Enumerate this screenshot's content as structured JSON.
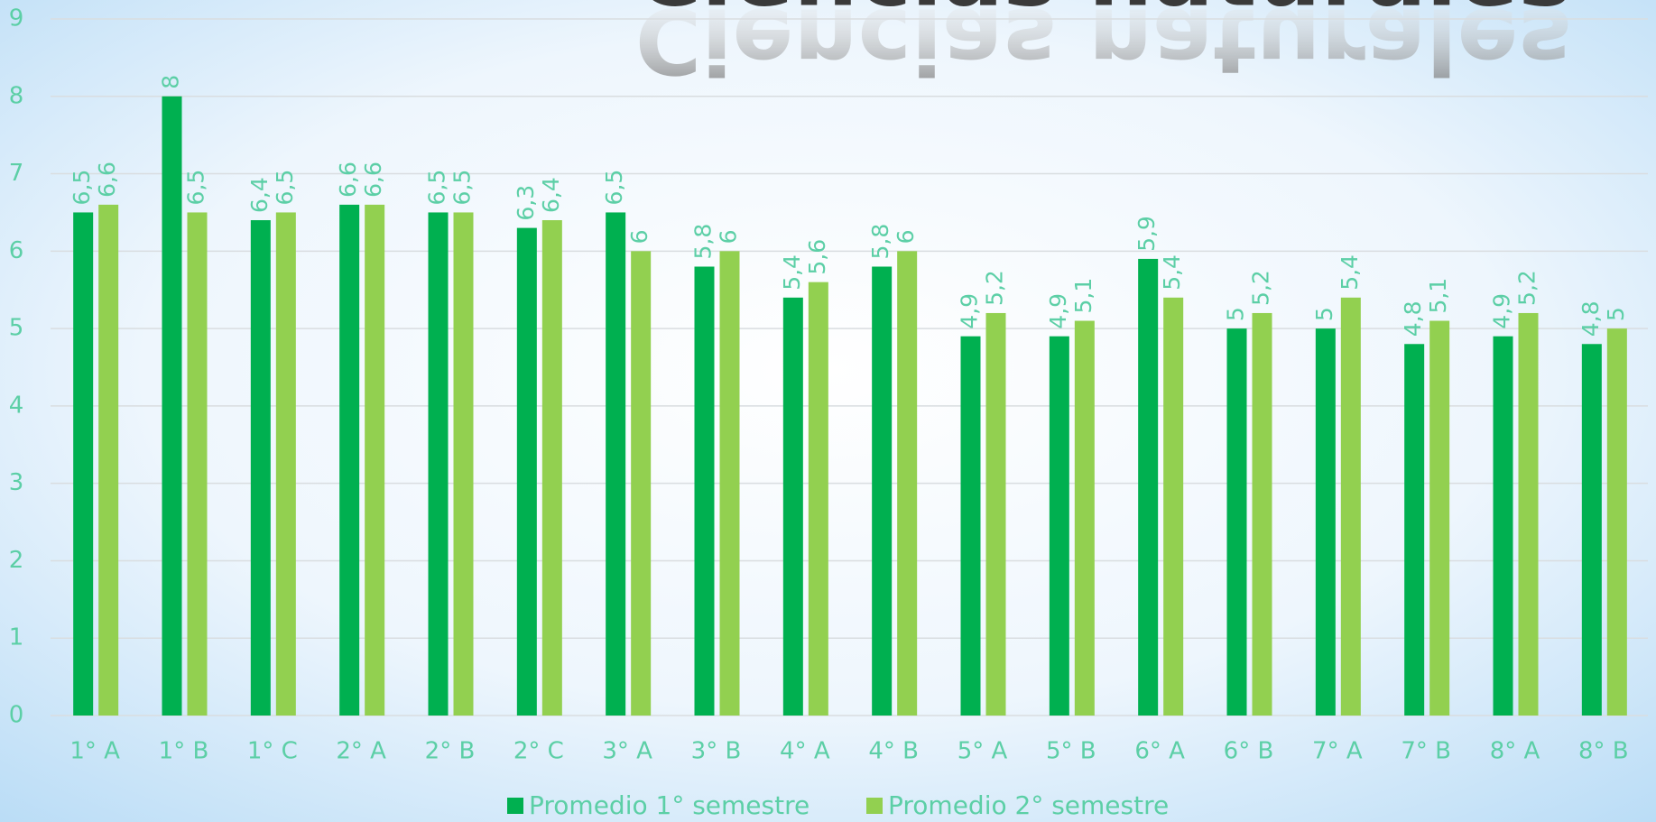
{
  "chart_data": {
    "type": "bar",
    "title": "Ciencias naturales",
    "categories": [
      "1° A",
      "1° B",
      "1° C",
      "2° A",
      "2° B",
      "2° C",
      "3° A",
      "3° B",
      "4° A",
      "4° B",
      "5° A",
      "5° B",
      "6° A",
      "6° B",
      "7° A",
      "7° B",
      "8° A",
      "8° B"
    ],
    "series": [
      {
        "name": "Promedio 1° semestre",
        "color": "#00b050",
        "values": [
          6.5,
          8,
          6.4,
          6.6,
          6.5,
          6.3,
          6.5,
          5.8,
          5.4,
          5.8,
          4.9,
          4.9,
          5.9,
          5,
          5,
          4.8,
          4.9,
          4.8
        ],
        "value_labels": [
          "6,5",
          "8",
          "6,4",
          "6,6",
          "6,5",
          "6,3",
          "6,5",
          "5,8",
          "5,4",
          "5,8",
          "4,9",
          "4,9",
          "5,9",
          "5",
          "5",
          "4,8",
          "4,9",
          "4,8"
        ]
      },
      {
        "name": "Promedio 2° semestre",
        "color": "#92d050",
        "values": [
          6.6,
          6.5,
          6.5,
          6.6,
          6.5,
          6.4,
          6,
          6,
          5.6,
          6,
          5.2,
          5.1,
          5.4,
          5.2,
          5.4,
          5.1,
          5.2,
          5
        ],
        "value_labels": [
          "6,6",
          "6,5",
          "6,5",
          "6,6",
          "6,5",
          "6,4",
          "6",
          "6",
          "5,6",
          "6",
          "5,2",
          "5,1",
          "5,4",
          "5,2",
          "5,4",
          "5,1",
          "5,2",
          "5"
        ]
      }
    ],
    "ylim": [
      0,
      9
    ],
    "yticks": [
      0,
      1,
      2,
      3,
      4,
      5,
      6,
      7,
      8,
      9
    ],
    "grid": true,
    "legend": "bottom"
  }
}
